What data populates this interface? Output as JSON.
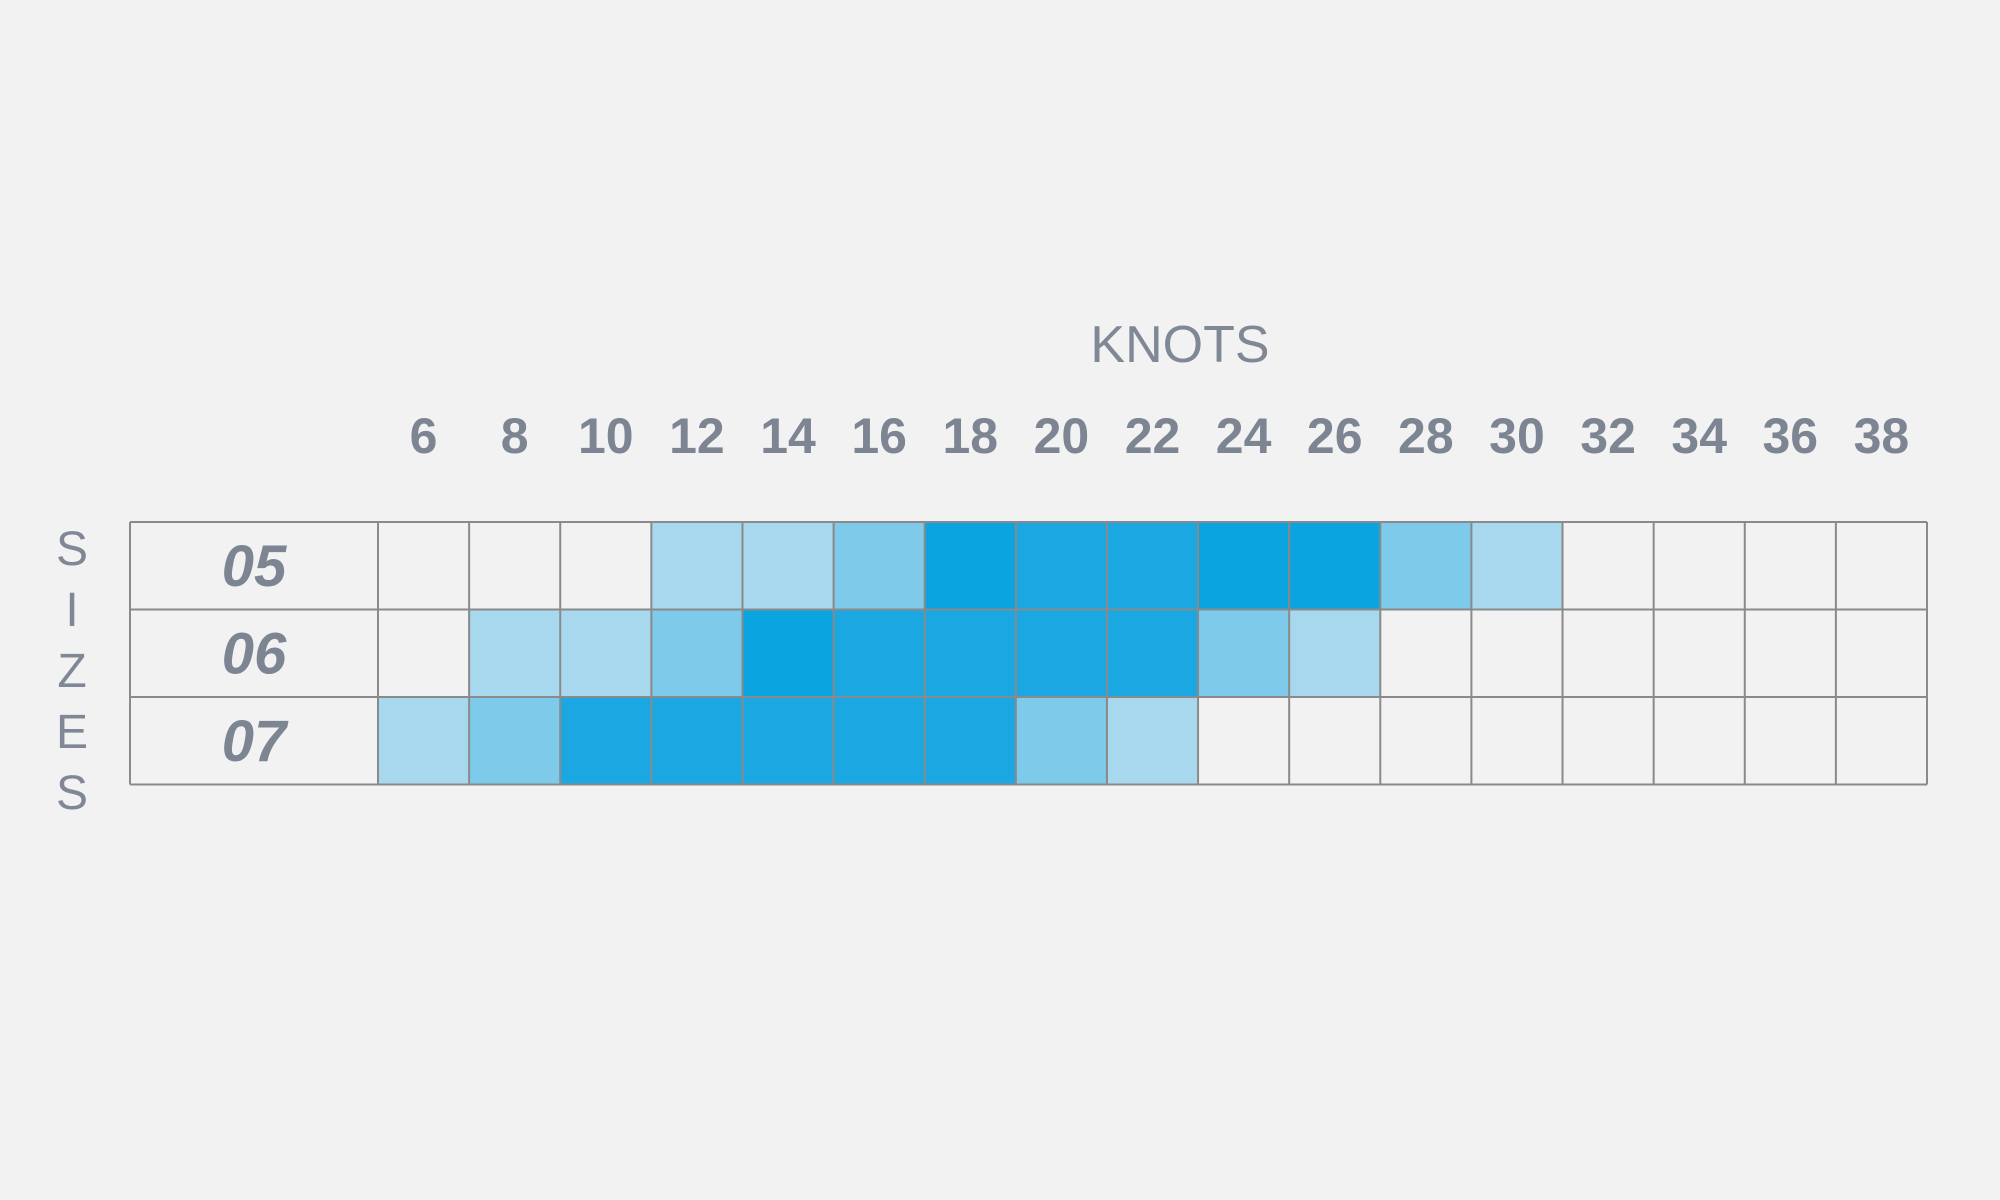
{
  "chart_data": {
    "type": "heatmap",
    "title": "KNOTS",
    "ylabel": "SIZES",
    "x": [
      6,
      8,
      10,
      12,
      14,
      16,
      18,
      20,
      22,
      24,
      26,
      28,
      30,
      32,
      34,
      36,
      38
    ],
    "y": [
      "05",
      "06",
      "07"
    ],
    "values": [
      [
        0,
        0,
        0,
        1,
        1,
        2,
        4,
        3,
        3,
        4,
        4,
        2,
        1,
        0,
        0,
        0,
        0
      ],
      [
        0,
        1,
        1,
        2,
        4,
        3,
        3,
        3,
        3,
        2,
        1,
        0,
        0,
        0,
        0,
        0,
        0
      ],
      [
        1,
        2,
        3,
        3,
        3,
        3,
        3,
        2,
        1,
        0,
        0,
        0,
        0,
        0,
        0,
        0,
        0
      ]
    ],
    "level_colors": [
      "none",
      "#a8d8ee",
      "#7dcaea",
      "#1ba8e2",
      "#0aa4e0"
    ],
    "grid": true
  }
}
